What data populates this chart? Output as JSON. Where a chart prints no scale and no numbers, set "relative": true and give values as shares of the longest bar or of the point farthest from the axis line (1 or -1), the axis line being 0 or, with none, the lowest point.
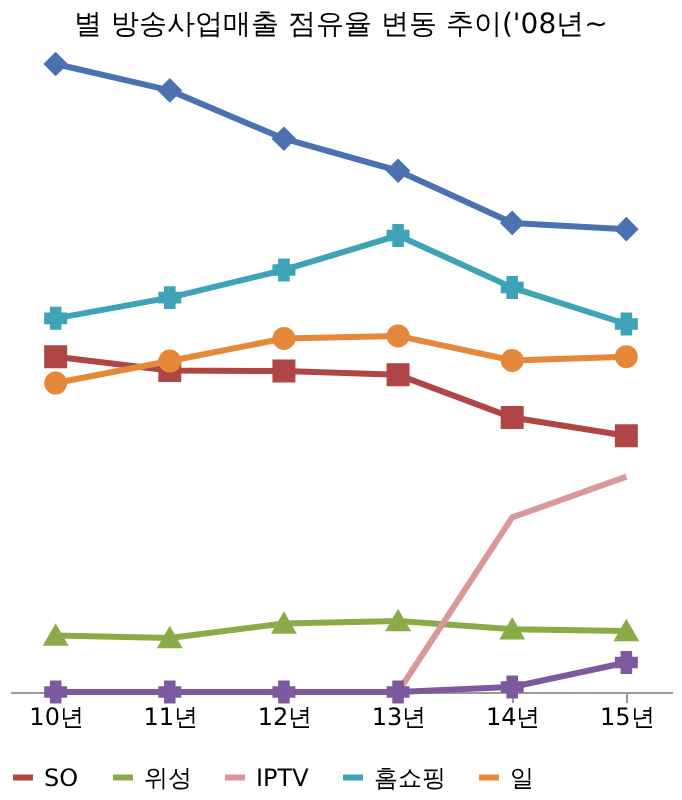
{
  "chart_data": {
    "type": "line",
    "title": "별 방송사업매출 점유율 변동 추이('08년~",
    "relative": true,
    "legend": "bottom",
    "grid": false,
    "tick_labels": "x",
    "categories": [
      "10년",
      "11년",
      "12년",
      "13년",
      "14년",
      "15년"
    ],
    "series": [
      {
        "color": "#4a72b0",
        "marker": "diamond",
        "values": [
          1,
          0.958,
          0.881,
          0.83,
          0.747,
          0.737
        ]
      },
      {
        "name": "SO",
        "color": "#b04545",
        "marker": "square",
        "values": [
          0.534,
          0.512,
          0.511,
          0.505,
          0.437,
          0.408
        ]
      },
      {
        "name": "위성",
        "color": "#8aac48",
        "marker": "triangle",
        "values": [
          0.09,
          0.086,
          0.109,
          0.113,
          0.1,
          0.097
        ]
      },
      {
        "name": "IPTV",
        "color": "#d9999a",
        "marker": "none",
        "values": [
          null,
          null,
          null,
          0,
          0.278,
          0.343
        ]
      },
      {
        "name": "홈쇼핑",
        "color": "#3fa3b8",
        "marker": "cross",
        "values": [
          0.595,
          0.628,
          0.672,
          0.727,
          0.644,
          0.586
        ]
      },
      {
        "name": "일",
        "color": "#e5883a",
        "marker": "circle",
        "values": [
          0.492,
          0.527,
          0.563,
          0.567,
          0.528,
          0.534
        ]
      },
      {
        "color": "#7d5a9e",
        "marker": "cross",
        "values": [
          0,
          0,
          0,
          0,
          0.008,
          0.047
        ]
      }
    ]
  }
}
